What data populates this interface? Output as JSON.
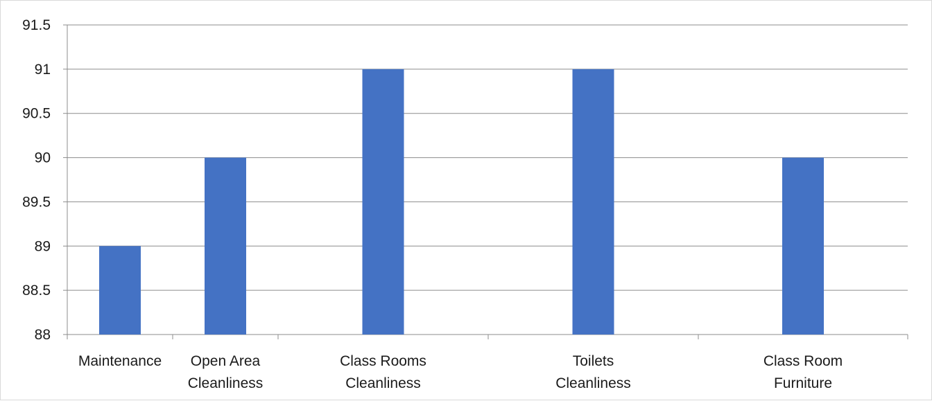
{
  "chart_data": {
    "type": "bar",
    "title": "",
    "xlabel": "",
    "ylabel": "",
    "ylim": [
      88,
      91.5
    ],
    "ytick_step": 0.5,
    "yticks": [
      "88",
      "88.5",
      "89",
      "89.5",
      "90",
      "90.5",
      "91",
      "91.5"
    ],
    "grid": true,
    "legend": "none",
    "bar_color": "#4472c4",
    "categories": [
      [
        "Maintenance"
      ],
      [
        "Open Area",
        "Cleanliness"
      ],
      [
        "Class Rooms",
        "Cleanliness"
      ],
      [
        "Toilets",
        "Cleanliness"
      ],
      [
        "Class Room",
        "Furniture"
      ]
    ],
    "values": [
      89,
      90,
      91,
      91,
      90
    ]
  }
}
